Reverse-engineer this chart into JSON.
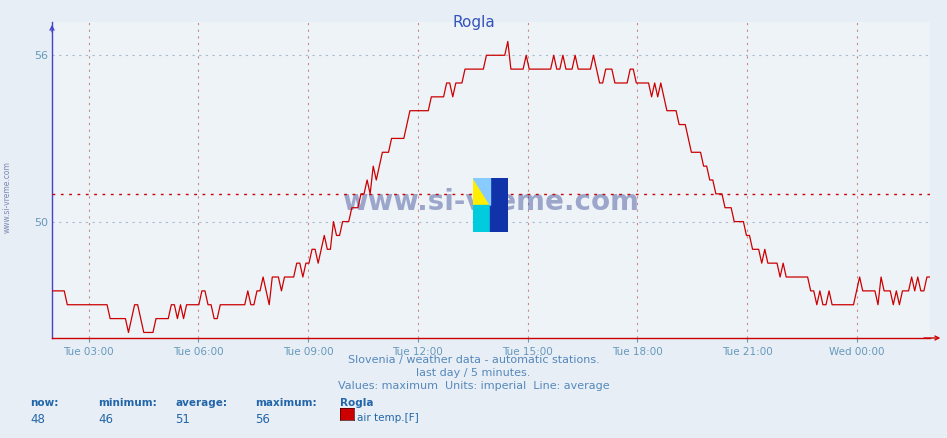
{
  "title": "Rogla",
  "title_color": "#3355bb",
  "bg_color": "#e8eef5",
  "plot_bg_color": "#eef3f8",
  "line_color": "#cc0000",
  "avg_line_color": "#cc0000",
  "avg_value": 51,
  "ymin": 45.8,
  "ymax": 57.2,
  "yticks": [
    50,
    56
  ],
  "tick_color": "#6699bb",
  "grid_v_color": "#cc8888",
  "grid_h_color": "#aabbcc",
  "watermark_text": "www.si-vreme.com",
  "watermark_color": "#223388",
  "sidebar_text": "www.si-vreme.com",
  "footer_line1": "Slovenia / weather data - automatic stations.",
  "footer_line2": "last day / 5 minutes.",
  "footer_line3": "Values: maximum  Units: imperial  Line: average",
  "footer_color": "#5588bb",
  "stats_label_color": "#2266aa",
  "stats_labels": [
    "now:",
    "minimum:",
    "average:",
    "maximum:",
    "Rogla"
  ],
  "stats_values": [
    "48",
    "46",
    "51",
    "56"
  ],
  "legend_label": "air temp.[F]",
  "legend_color": "#cc0000",
  "x_labels": [
    "Tue 03:00",
    "Tue 06:00",
    "Tue 09:00",
    "Tue 12:00",
    "Tue 15:00",
    "Tue 18:00",
    "Tue 21:00",
    "Wed 00:00"
  ],
  "axis_left_color": "#4444cc",
  "axis_bottom_color": "#cc0000",
  "n_points": 288
}
